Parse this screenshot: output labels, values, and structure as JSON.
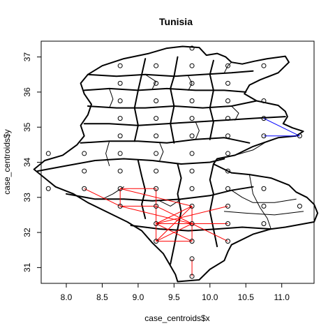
{
  "chart_data": {
    "type": "scatter",
    "title": "Tunisia",
    "xlabel": "case_centroids$x",
    "ylabel": "case_centroids$y",
    "xlim": [
      7.65,
      11.45
    ],
    "ylim": [
      30.55,
      37.45
    ],
    "xticks": [
      "8.0",
      "8.5",
      "9.0",
      "9.5",
      "10.0",
      "10.5",
      "11.0"
    ],
    "yticks": [
      "31",
      "32",
      "33",
      "34",
      "35",
      "36",
      "37"
    ],
    "grid": false,
    "points": [
      {
        "x": 9.75,
        "y": 37.25
      },
      {
        "x": 8.75,
        "y": 36.75
      },
      {
        "x": 9.25,
        "y": 36.75
      },
      {
        "x": 9.75,
        "y": 36.75
      },
      {
        "x": 10.25,
        "y": 36.75
      },
      {
        "x": 10.75,
        "y": 36.75
      },
      {
        "x": 8.75,
        "y": 36.25
      },
      {
        "x": 9.25,
        "y": 36.25
      },
      {
        "x": 9.75,
        "y": 36.25
      },
      {
        "x": 10.25,
        "y": 36.25
      },
      {
        "x": 8.75,
        "y": 35.75
      },
      {
        "x": 9.25,
        "y": 35.75
      },
      {
        "x": 9.75,
        "y": 35.75
      },
      {
        "x": 10.25,
        "y": 35.75
      },
      {
        "x": 10.75,
        "y": 35.75
      },
      {
        "x": 8.75,
        "y": 35.25
      },
      {
        "x": 9.25,
        "y": 35.25
      },
      {
        "x": 9.75,
        "y": 35.25
      },
      {
        "x": 10.25,
        "y": 35.25
      },
      {
        "x": 10.75,
        "y": 35.25
      },
      {
        "x": 8.75,
        "y": 34.75
      },
      {
        "x": 9.25,
        "y": 34.75
      },
      {
        "x": 9.75,
        "y": 34.75
      },
      {
        "x": 10.25,
        "y": 34.75
      },
      {
        "x": 10.75,
        "y": 34.75
      },
      {
        "x": 11.25,
        "y": 34.75
      },
      {
        "x": 7.75,
        "y": 34.25
      },
      {
        "x": 8.25,
        "y": 34.25
      },
      {
        "x": 8.75,
        "y": 34.25
      },
      {
        "x": 9.25,
        "y": 34.25
      },
      {
        "x": 9.75,
        "y": 34.25
      },
      {
        "x": 10.25,
        "y": 34.25
      },
      {
        "x": 8.25,
        "y": 33.75
      },
      {
        "x": 8.75,
        "y": 33.75
      },
      {
        "x": 9.25,
        "y": 33.75
      },
      {
        "x": 9.75,
        "y": 33.75
      },
      {
        "x": 10.25,
        "y": 33.75
      },
      {
        "x": 7.75,
        "y": 33.25
      },
      {
        "x": 8.25,
        "y": 33.25
      },
      {
        "x": 8.75,
        "y": 33.25
      },
      {
        "x": 9.25,
        "y": 33.25
      },
      {
        "x": 9.75,
        "y": 33.25
      },
      {
        "x": 10.25,
        "y": 33.25
      },
      {
        "x": 10.75,
        "y": 33.25
      },
      {
        "x": 8.75,
        "y": 32.75
      },
      {
        "x": 9.25,
        "y": 32.75
      },
      {
        "x": 9.75,
        "y": 32.75
      },
      {
        "x": 10.25,
        "y": 32.75
      },
      {
        "x": 10.75,
        "y": 32.75
      },
      {
        "x": 11.25,
        "y": 32.75
      },
      {
        "x": 9.25,
        "y": 32.25
      },
      {
        "x": 9.75,
        "y": 32.25
      },
      {
        "x": 10.25,
        "y": 32.25
      },
      {
        "x": 10.75,
        "y": 32.25
      },
      {
        "x": 9.25,
        "y": 31.75
      },
      {
        "x": 9.75,
        "y": 31.75
      },
      {
        "x": 10.25,
        "y": 31.75
      },
      {
        "x": 9.75,
        "y": 31.25
      },
      {
        "x": 9.75,
        "y": 30.75
      }
    ],
    "edges": [
      {
        "color": "#ff0000",
        "from": [
          8.25,
          33.25
        ],
        "to": [
          8.75,
          32.75
        ]
      },
      {
        "color": "#ff0000",
        "from": [
          8.75,
          33.25
        ],
        "to": [
          8.75,
          32.75
        ]
      },
      {
        "color": "#ff0000",
        "from": [
          8.75,
          33.25
        ],
        "to": [
          9.25,
          33.25
        ]
      },
      {
        "color": "#ff0000",
        "from": [
          8.75,
          33.25
        ],
        "to": [
          9.75,
          32.75
        ]
      },
      {
        "color": "#ff0000",
        "from": [
          9.25,
          33.25
        ],
        "to": [
          9.25,
          32.75
        ]
      },
      {
        "color": "#ff0000",
        "from": [
          8.75,
          32.75
        ],
        "to": [
          9.25,
          32.75
        ]
      },
      {
        "color": "#ff0000",
        "from": [
          8.75,
          32.75
        ],
        "to": [
          9.75,
          32.25
        ]
      },
      {
        "color": "#ff0000",
        "from": [
          9.25,
          32.75
        ],
        "to": [
          9.25,
          32.25
        ]
      },
      {
        "color": "#ff0000",
        "from": [
          9.25,
          32.75
        ],
        "to": [
          9.75,
          32.25
        ]
      },
      {
        "color": "#ff0000",
        "from": [
          9.75,
          32.75
        ],
        "to": [
          9.75,
          32.25
        ]
      },
      {
        "color": "#ff0000",
        "from": [
          9.75,
          32.75
        ],
        "to": [
          9.25,
          32.25
        ]
      },
      {
        "color": "#ff0000",
        "from": [
          9.75,
          32.75
        ],
        "to": [
          9.25,
          31.75
        ]
      },
      {
        "color": "#ff0000",
        "from": [
          9.25,
          32.25
        ],
        "to": [
          9.25,
          31.75
        ]
      },
      {
        "color": "#ff0000",
        "from": [
          9.25,
          32.25
        ],
        "to": [
          9.75,
          31.75
        ]
      },
      {
        "color": "#ff0000",
        "from": [
          9.25,
          32.25
        ],
        "to": [
          10.25,
          32.25
        ]
      },
      {
        "color": "#ff0000",
        "from": [
          9.25,
          32.25
        ],
        "to": [
          10.25,
          32.75
        ]
      },
      {
        "color": "#ff0000",
        "from": [
          9.75,
          32.25
        ],
        "to": [
          10.25,
          31.75
        ]
      },
      {
        "color": "#ff0000",
        "from": [
          9.75,
          32.25
        ],
        "to": [
          9.75,
          31.75
        ]
      },
      {
        "color": "#ff0000",
        "from": [
          9.75,
          32.25
        ],
        "to": [
          9.25,
          31.75
        ]
      },
      {
        "color": "#ff0000",
        "from": [
          9.25,
          31.75
        ],
        "to": [
          9.75,
          31.75
        ]
      },
      {
        "color": "#ff0000",
        "from": [
          9.75,
          31.25
        ],
        "to": [
          9.75,
          30.75
        ]
      },
      {
        "color": "#0000ff",
        "from": [
          10.75,
          35.25
        ],
        "to": [
          11.25,
          34.75
        ]
      },
      {
        "color": "#0000ff",
        "from": [
          10.75,
          34.75
        ],
        "to": [
          11.25,
          34.75
        ]
      }
    ]
  },
  "map_outline": {
    "outer": [
      [
        9.62,
        37.3
      ],
      [
        9.85,
        37.27
      ],
      [
        9.95,
        37.05
      ],
      [
        10.1,
        37.1
      ],
      [
        10.22,
        37.0
      ],
      [
        10.3,
        36.85
      ],
      [
        10.45,
        36.8
      ],
      [
        10.62,
        36.88
      ],
      [
        10.8,
        36.95
      ],
      [
        11.05,
        37.02
      ],
      [
        11.1,
        36.85
      ],
      [
        10.95,
        36.55
      ],
      [
        10.7,
        36.35
      ],
      [
        10.55,
        36.2
      ],
      [
        10.48,
        35.95
      ],
      [
        10.65,
        35.75
      ],
      [
        10.95,
        35.62
      ],
      [
        11.05,
        35.45
      ],
      [
        11.08,
        35.3
      ],
      [
        11.02,
        35.1
      ],
      [
        11.15,
        34.98
      ],
      [
        11.3,
        34.88
      ],
      [
        11.2,
        34.75
      ],
      [
        10.95,
        34.7
      ],
      [
        10.6,
        34.45
      ],
      [
        10.35,
        34.2
      ],
      [
        10.1,
        34.1
      ],
      [
        10.05,
        33.95
      ],
      [
        10.3,
        33.7
      ],
      [
        10.55,
        33.65
      ],
      [
        10.85,
        33.55
      ],
      [
        11.1,
        33.35
      ],
      [
        11.2,
        33.15
      ],
      [
        11.35,
        33.0
      ],
      [
        11.45,
        32.8
      ],
      [
        11.5,
        32.55
      ],
      [
        11.45,
        32.3
      ],
      [
        11.05,
        32.15
      ],
      [
        10.85,
        32.1
      ],
      [
        10.6,
        31.95
      ],
      [
        10.3,
        31.65
      ],
      [
        10.25,
        31.45
      ],
      [
        10.2,
        31.2
      ],
      [
        10.0,
        30.95
      ],
      [
        9.85,
        30.65
      ],
      [
        9.55,
        30.6
      ],
      [
        9.52,
        30.8
      ],
      [
        9.45,
        31.05
      ],
      [
        9.35,
        31.4
      ],
      [
        9.2,
        31.7
      ],
      [
        9.05,
        32.05
      ],
      [
        8.85,
        32.3
      ],
      [
        8.6,
        32.55
      ],
      [
        8.3,
        32.85
      ],
      [
        8.1,
        33.1
      ],
      [
        7.85,
        33.3
      ],
      [
        7.7,
        33.55
      ],
      [
        7.55,
        33.8
      ],
      [
        7.7,
        34.05
      ],
      [
        7.95,
        34.2
      ],
      [
        8.15,
        34.5
      ],
      [
        8.25,
        34.75
      ],
      [
        8.2,
        35.05
      ],
      [
        8.3,
        35.35
      ],
      [
        8.35,
        35.65
      ],
      [
        8.25,
        35.95
      ],
      [
        8.2,
        36.25
      ],
      [
        8.3,
        36.5
      ],
      [
        8.5,
        36.75
      ],
      [
        8.8,
        36.95
      ],
      [
        9.15,
        37.1
      ],
      [
        9.4,
        37.25
      ],
      [
        9.62,
        37.3
      ]
    ],
    "inner_thick": [
      [
        [
          7.6,
          33.75
        ],
        [
          8.0,
          33.9
        ],
        [
          8.4,
          34.05
        ],
        [
          8.8,
          34.1
        ],
        [
          9.2,
          34.05
        ],
        [
          9.6,
          33.95
        ],
        [
          10.0,
          34.0
        ],
        [
          10.2,
          34.1
        ]
      ],
      [
        [
          8.2,
          34.55
        ],
        [
          8.6,
          34.6
        ],
        [
          9.0,
          34.6
        ],
        [
          9.4,
          34.55
        ],
        [
          9.8,
          34.65
        ],
        [
          10.2,
          34.7
        ],
        [
          10.55,
          34.55
        ]
      ],
      [
        [
          8.25,
          35.1
        ],
        [
          8.6,
          35.1
        ],
        [
          9.0,
          35.05
        ],
        [
          9.4,
          35.1
        ],
        [
          9.8,
          35.15
        ],
        [
          10.2,
          35.2
        ],
        [
          10.6,
          35.25
        ],
        [
          11.05,
          35.3
        ]
      ],
      [
        [
          8.3,
          35.6
        ],
        [
          8.7,
          35.55
        ],
        [
          9.1,
          35.55
        ],
        [
          9.5,
          35.6
        ],
        [
          9.9,
          35.55
        ],
        [
          10.3,
          35.6
        ],
        [
          10.65,
          35.75
        ]
      ],
      [
        [
          8.25,
          36.05
        ],
        [
          8.6,
          36.1
        ],
        [
          9.0,
          36.05
        ],
        [
          9.4,
          36.1
        ],
        [
          9.8,
          36.05
        ],
        [
          10.2,
          36.05
        ],
        [
          10.5,
          36.0
        ]
      ],
      [
        [
          8.3,
          36.5
        ],
        [
          8.7,
          36.45
        ],
        [
          9.1,
          36.5
        ],
        [
          9.5,
          36.45
        ],
        [
          9.9,
          36.5
        ],
        [
          10.3,
          36.55
        ],
        [
          10.6,
          36.6
        ]
      ],
      [
        [
          8.0,
          33.1
        ],
        [
          8.4,
          32.95
        ],
        [
          8.8,
          32.95
        ],
        [
          9.2,
          32.9
        ],
        [
          9.6,
          32.95
        ],
        [
          10.0,
          33.05
        ],
        [
          10.3,
          33.2
        ],
        [
          10.6,
          33.3
        ]
      ],
      [
        [
          8.9,
          32.2
        ],
        [
          9.3,
          32.1
        ],
        [
          9.7,
          32.05
        ],
        [
          10.1,
          32.1
        ],
        [
          10.45,
          32.15
        ],
        [
          10.85,
          32.1
        ]
      ],
      [
        [
          9.0,
          34.05
        ],
        [
          9.05,
          33.6
        ],
        [
          9.1,
          33.2
        ],
        [
          9.05,
          32.8
        ],
        [
          9.1,
          32.4
        ]
      ],
      [
        [
          9.55,
          33.95
        ],
        [
          9.6,
          33.55
        ],
        [
          9.55,
          33.1
        ],
        [
          9.6,
          32.6
        ],
        [
          9.55,
          32.1
        ],
        [
          9.5,
          31.6
        ],
        [
          9.45,
          31.1
        ]
      ],
      [
        [
          10.05,
          33.95
        ],
        [
          10.0,
          33.5
        ],
        [
          10.05,
          33.1
        ],
        [
          10.0,
          32.6
        ],
        [
          10.05,
          32.1
        ],
        [
          10.1,
          31.6
        ]
      ],
      [
        [
          8.95,
          34.6
        ],
        [
          9.0,
          35.05
        ],
        [
          8.95,
          35.55
        ],
        [
          9.0,
          36.05
        ],
        [
          9.05,
          36.5
        ],
        [
          9.1,
          36.95
        ]
      ],
      [
        [
          9.5,
          34.55
        ],
        [
          9.45,
          35.1
        ],
        [
          9.5,
          35.6
        ],
        [
          9.45,
          36.1
        ],
        [
          9.5,
          36.45
        ],
        [
          9.55,
          37.0
        ]
      ],
      [
        [
          10.0,
          34.65
        ],
        [
          10.05,
          35.15
        ],
        [
          10.0,
          35.55
        ],
        [
          10.05,
          36.05
        ],
        [
          10.0,
          36.5
        ],
        [
          10.05,
          36.9
        ]
      ]
    ],
    "inner_thin": [
      [
        [
          10.55,
          33.65
        ],
        [
          10.6,
          33.1
        ],
        [
          10.7,
          32.7
        ],
        [
          10.8,
          32.4
        ],
        [
          10.85,
          32.1
        ]
      ],
      [
        [
          10.3,
          33.2
        ],
        [
          10.45,
          33.0
        ],
        [
          10.6,
          32.85
        ],
        [
          10.9,
          32.85
        ],
        [
          11.2,
          32.95
        ]
      ],
      [
        [
          10.2,
          32.6
        ],
        [
          10.5,
          32.55
        ],
        [
          10.9,
          32.5
        ],
        [
          11.3,
          32.6
        ]
      ],
      [
        [
          8.6,
          34.6
        ],
        [
          8.55,
          34.25
        ],
        [
          8.6,
          33.9
        ]
      ],
      [
        [
          9.3,
          34.05
        ],
        [
          9.35,
          34.3
        ],
        [
          9.3,
          34.55
        ]
      ],
      [
        [
          9.8,
          34.65
        ],
        [
          9.85,
          34.9
        ],
        [
          9.8,
          35.15
        ]
      ],
      [
        [
          10.35,
          35.2
        ],
        [
          10.4,
          35.4
        ],
        [
          10.3,
          35.6
        ]
      ],
      [
        [
          8.6,
          35.55
        ],
        [
          8.65,
          35.8
        ],
        [
          8.6,
          36.1
        ]
      ],
      [
        [
          9.2,
          36.1
        ],
        [
          9.25,
          36.3
        ],
        [
          9.1,
          36.5
        ]
      ],
      [
        [
          9.7,
          36.05
        ],
        [
          9.75,
          36.25
        ],
        [
          9.7,
          36.45
        ]
      ],
      [
        [
          10.2,
          36.55
        ],
        [
          10.25,
          36.75
        ],
        [
          10.3,
          36.85
        ]
      ],
      [
        [
          9.3,
          32.9
        ],
        [
          9.45,
          32.75
        ],
        [
          9.6,
          32.95
        ]
      ],
      [
        [
          8.5,
          32.95
        ],
        [
          8.65,
          33.1
        ],
        [
          8.8,
          33.3
        ]
      ],
      [
        [
          10.35,
          34.2
        ],
        [
          10.6,
          34.35
        ],
        [
          10.8,
          34.6
        ],
        [
          10.95,
          34.7
        ]
      ]
    ]
  }
}
